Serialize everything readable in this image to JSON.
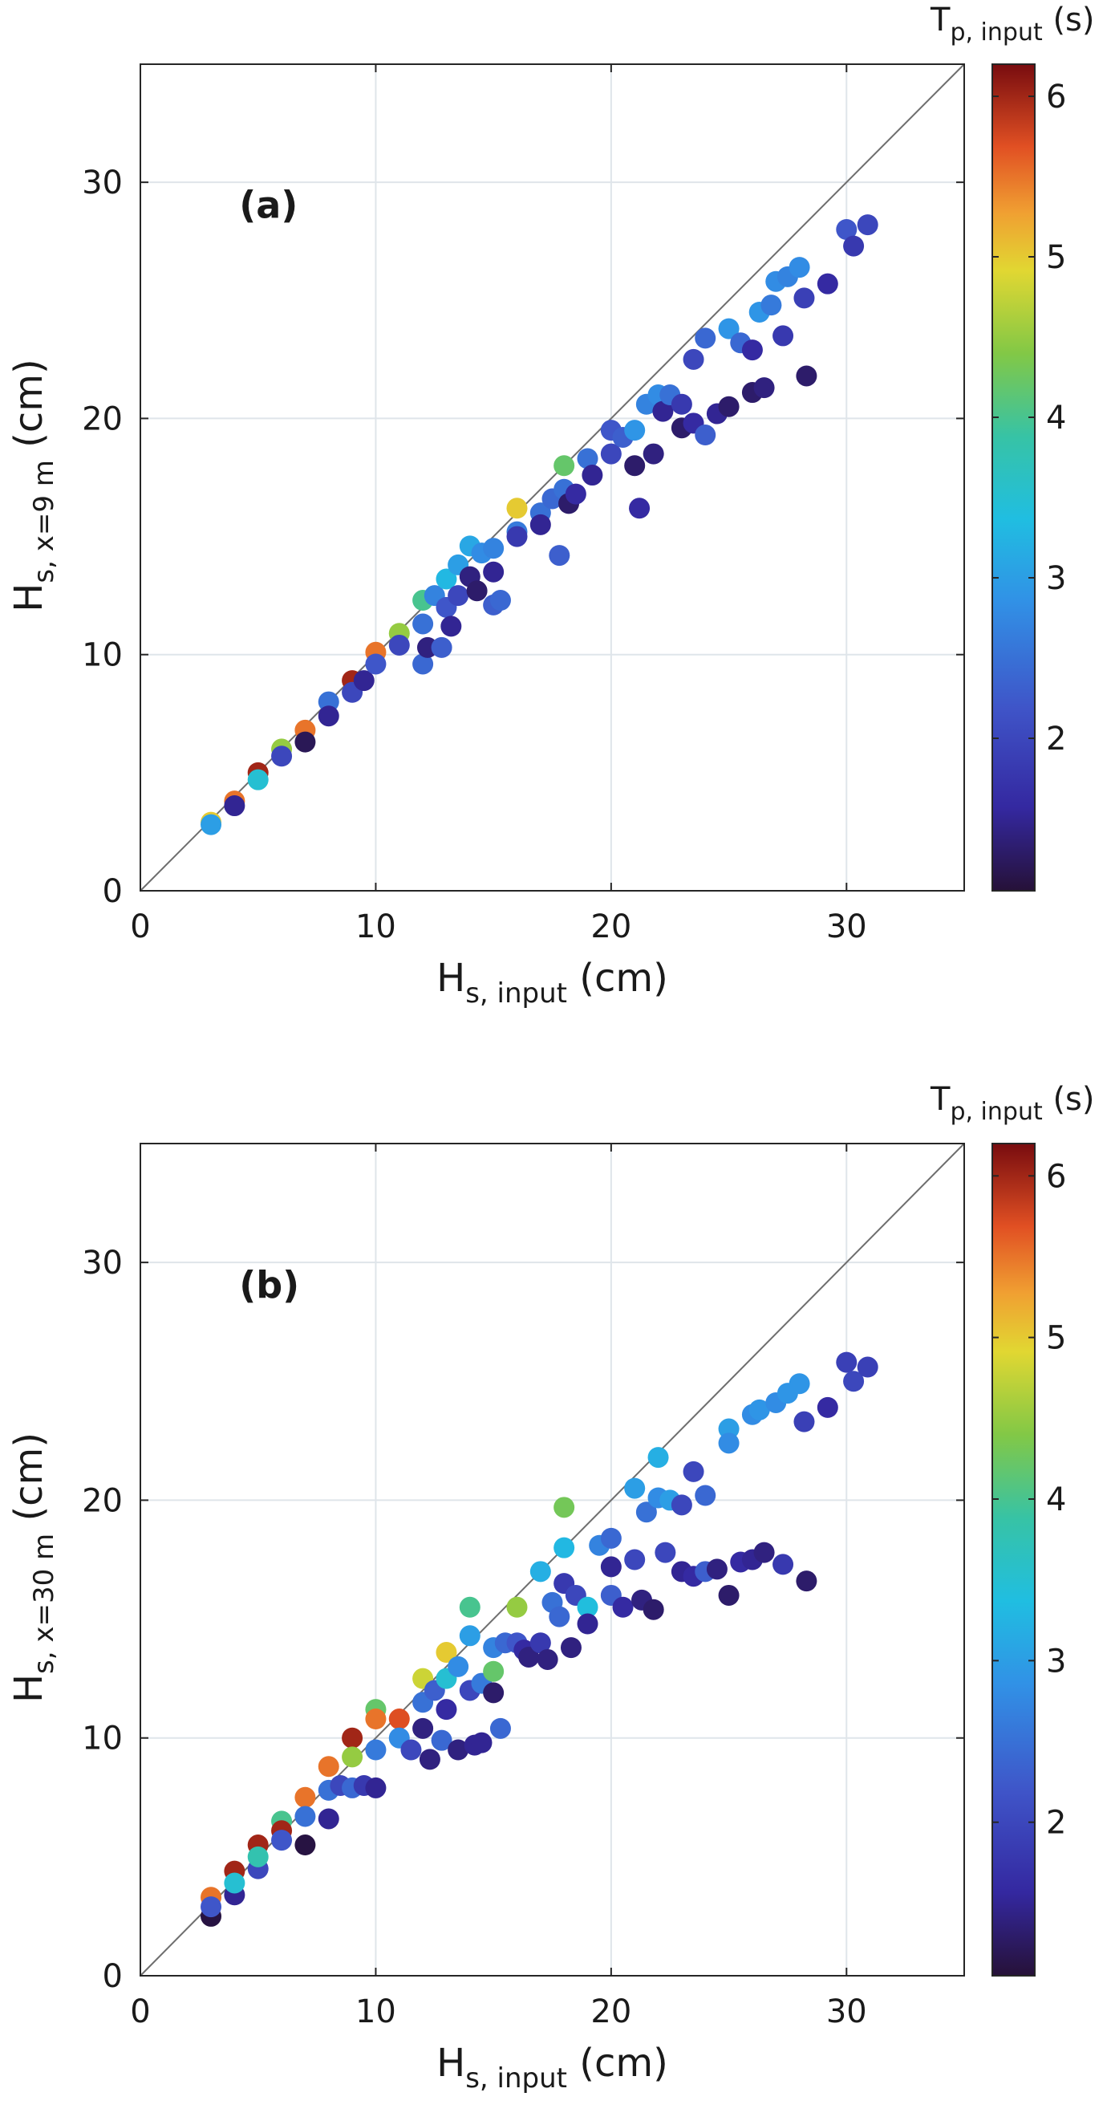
{
  "chart_data": [
    {
      "type": "scatter",
      "panel_label": "(a)",
      "xlabel_main": "H",
      "xlabel_sub": "s, input",
      "xlabel_unit": "(cm)",
      "ylabel_main": "H",
      "ylabel_sub": "s, x=9 m",
      "ylabel_unit": "(cm)",
      "xlim": [
        0,
        35
      ],
      "ylim": [
        0,
        35
      ],
      "xticks": [
        0,
        10,
        20,
        30
      ],
      "yticks": [
        0,
        10,
        20,
        30
      ],
      "grid": true,
      "reference_line": "y = x",
      "colorbar": {
        "label_main": "T",
        "label_sub": "p, input",
        "label_unit": "(s)",
        "range": [
          1.05,
          6.2
        ],
        "ticks": [
          2,
          3,
          4,
          5,
          6
        ]
      },
      "series": [
        {
          "name": "points",
          "points": [
            [
              3.0,
              2.9,
              5.0
            ],
            [
              3.0,
              2.8,
              3.0
            ],
            [
              4.0,
              3.8,
              5.5
            ],
            [
              4.0,
              3.6,
              1.5
            ],
            [
              5.0,
              5.0,
              6.0
            ],
            [
              5.0,
              4.7,
              3.5
            ],
            [
              6.0,
              6.0,
              4.5
            ],
            [
              6.0,
              5.7,
              2.0
            ],
            [
              7.0,
              6.8,
              5.5
            ],
            [
              7.0,
              6.3,
              1.2
            ],
            [
              8.0,
              8.0,
              2.5
            ],
            [
              8.0,
              7.4,
              1.5
            ],
            [
              9.0,
              8.9,
              6.0
            ],
            [
              9.0,
              8.4,
              2.0
            ],
            [
              9.5,
              8.9,
              1.5
            ],
            [
              10.0,
              10.1,
              5.5
            ],
            [
              10.0,
              9.6,
              2.2
            ],
            [
              11.0,
              10.9,
              4.5
            ],
            [
              11.0,
              10.4,
              2.0
            ],
            [
              12.0,
              12.3,
              4.0
            ],
            [
              12.0,
              11.3,
              2.5
            ],
            [
              12.0,
              9.6,
              2.4
            ],
            [
              12.2,
              10.3,
              1.4
            ],
            [
              12.5,
              12.5,
              2.7
            ],
            [
              12.8,
              10.3,
              2.3
            ],
            [
              13.0,
              13.2,
              3.3
            ],
            [
              13.0,
              12.0,
              2.2
            ],
            [
              13.2,
              11.2,
              1.5
            ],
            [
              13.5,
              13.8,
              3.0
            ],
            [
              13.5,
              12.5,
              2.0
            ],
            [
              14.0,
              14.6,
              3.1
            ],
            [
              14.0,
              13.3,
              1.4
            ],
            [
              14.3,
              12.7,
              1.3
            ],
            [
              14.5,
              14.3,
              2.8
            ],
            [
              15.0,
              14.5,
              2.7
            ],
            [
              15.0,
              13.5,
              1.5
            ],
            [
              15.0,
              12.1,
              2.3
            ],
            [
              15.3,
              12.3,
              2.4
            ],
            [
              16.0,
              16.2,
              5.0
            ],
            [
              16.0,
              15.2,
              2.6
            ],
            [
              16.0,
              15.0,
              1.8
            ],
            [
              17.0,
              16.0,
              2.5
            ],
            [
              17.0,
              15.5,
              1.5
            ],
            [
              17.5,
              16.6,
              2.4
            ],
            [
              17.8,
              14.2,
              2.3
            ],
            [
              18.0,
              18.0,
              4.2
            ],
            [
              18.0,
              17.0,
              2.5
            ],
            [
              18.2,
              16.4,
              1.3
            ],
            [
              18.5,
              16.8,
              1.6
            ],
            [
              19.0,
              18.3,
              2.5
            ],
            [
              19.2,
              17.6,
              1.5
            ],
            [
              20.0,
              19.5,
              2.2
            ],
            [
              20.0,
              18.5,
              2.0
            ],
            [
              20.5,
              19.2,
              2.3
            ],
            [
              21.0,
              19.5,
              2.9
            ],
            [
              21.0,
              18.0,
              1.3
            ],
            [
              21.2,
              16.2,
              1.6
            ],
            [
              21.5,
              20.6,
              2.7
            ],
            [
              21.8,
              18.5,
              1.4
            ],
            [
              22.0,
              21.0,
              2.8
            ],
            [
              22.2,
              20.3,
              1.5
            ],
            [
              22.5,
              21.0,
              2.5
            ],
            [
              23.0,
              20.6,
              1.8
            ],
            [
              23.0,
              19.6,
              1.3
            ],
            [
              23.5,
              22.5,
              2.0
            ],
            [
              23.5,
              19.8,
              1.6
            ],
            [
              24.0,
              23.4,
              2.4
            ],
            [
              24.0,
              19.3,
              2.3
            ],
            [
              24.5,
              20.2,
              1.5
            ],
            [
              25.0,
              23.8,
              2.9
            ],
            [
              25.0,
              20.5,
              1.3
            ],
            [
              25.5,
              23.2,
              2.4
            ],
            [
              26.0,
              22.9,
              1.6
            ],
            [
              26.0,
              21.1,
              1.3
            ],
            [
              26.3,
              24.5,
              2.9
            ],
            [
              26.5,
              21.3,
              1.4
            ],
            [
              26.8,
              24.8,
              2.6
            ],
            [
              27.0,
              25.8,
              2.8
            ],
            [
              27.3,
              23.5,
              1.8
            ],
            [
              27.5,
              26.0,
              2.7
            ],
            [
              28.0,
              26.4,
              2.8
            ],
            [
              28.2,
              25.1,
              1.9
            ],
            [
              28.3,
              21.8,
              1.3
            ],
            [
              29.2,
              25.7,
              1.6
            ],
            [
              30.0,
              28.0,
              2.2
            ],
            [
              30.3,
              27.3,
              1.8
            ],
            [
              30.9,
              28.2,
              2.0
            ]
          ]
        }
      ]
    },
    {
      "type": "scatter",
      "panel_label": "(b)",
      "xlabel_main": "H",
      "xlabel_sub": "s, input",
      "xlabel_unit": "(cm)",
      "ylabel_main": "H",
      "ylabel_sub": "s, x=30 m",
      "ylabel_unit": "(cm)",
      "xlim": [
        0,
        35
      ],
      "ylim": [
        0,
        35
      ],
      "xticks": [
        0,
        10,
        20,
        30
      ],
      "yticks": [
        0,
        10,
        20,
        30
      ],
      "grid": true,
      "reference_line": "y = x",
      "colorbar": {
        "label_main": "T",
        "label_sub": "p, input",
        "label_unit": "(s)",
        "range": [
          1.05,
          6.2
        ],
        "ticks": [
          2,
          3,
          4,
          5,
          6
        ]
      },
      "series": [
        {
          "name": "points",
          "points": [
            [
              3.0,
              3.3,
              5.5
            ],
            [
              3.0,
              2.5,
              1.1
            ],
            [
              3.0,
              2.9,
              2.2
            ],
            [
              4.0,
              4.4,
              6.0
            ],
            [
              4.0,
              3.4,
              1.5
            ],
            [
              4.0,
              3.9,
              3.5
            ],
            [
              5.0,
              5.5,
              6.0
            ],
            [
              5.0,
              4.5,
              2.0
            ],
            [
              5.0,
              5.0,
              3.8
            ],
            [
              6.0,
              6.5,
              4.0
            ],
            [
              6.0,
              6.1,
              6.0
            ],
            [
              6.0,
              5.7,
              2.2
            ],
            [
              7.0,
              7.5,
              5.5
            ],
            [
              7.0,
              6.7,
              2.5
            ],
            [
              7.0,
              5.5,
              1.1
            ],
            [
              8.0,
              8.8,
              5.5
            ],
            [
              8.0,
              7.8,
              2.5
            ],
            [
              8.0,
              6.6,
              1.5
            ],
            [
              8.5,
              8.0,
              2.0
            ],
            [
              9.0,
              10.0,
              6.0
            ],
            [
              9.0,
              9.2,
              4.5
            ],
            [
              9.0,
              7.9,
              2.4
            ],
            [
              9.5,
              8.0,
              1.8
            ],
            [
              10.0,
              11.2,
              4.2
            ],
            [
              10.0,
              10.8,
              5.5
            ],
            [
              10.0,
              9.5,
              2.6
            ],
            [
              10.0,
              7.9,
              1.5
            ],
            [
              11.0,
              10.8,
              5.7
            ],
            [
              11.0,
              10.0,
              2.8
            ],
            [
              11.5,
              9.5,
              2.0
            ],
            [
              12.0,
              12.5,
              4.8
            ],
            [
              12.0,
              11.5,
              2.5
            ],
            [
              12.0,
              10.4,
              1.4
            ],
            [
              12.3,
              9.1,
              1.4
            ],
            [
              12.5,
              12.0,
              2.3
            ],
            [
              12.8,
              9.9,
              2.4
            ],
            [
              13.0,
              13.6,
              5.0
            ],
            [
              13.0,
              12.5,
              3.5
            ],
            [
              13.0,
              11.2,
              1.6
            ],
            [
              13.5,
              13.0,
              2.8
            ],
            [
              13.5,
              9.5,
              1.4
            ],
            [
              14.0,
              15.5,
              4.0
            ],
            [
              14.0,
              14.3,
              3.0
            ],
            [
              14.0,
              12.0,
              2.0
            ],
            [
              14.2,
              9.7,
              1.5
            ],
            [
              14.5,
              12.3,
              2.6
            ],
            [
              14.5,
              9.8,
              1.5
            ],
            [
              15.0,
              13.8,
              2.7
            ],
            [
              15.0,
              12.8,
              4.2
            ],
            [
              15.0,
              11.9,
              1.3
            ],
            [
              15.3,
              10.4,
              2.4
            ],
            [
              15.5,
              14.0,
              2.4
            ],
            [
              16.0,
              15.5,
              4.5
            ],
            [
              16.0,
              14.0,
              2.2
            ],
            [
              16.3,
              13.7,
              1.6
            ],
            [
              16.5,
              13.4,
              1.4
            ],
            [
              17.0,
              17.0,
              3.2
            ],
            [
              17.0,
              14.0,
              1.8
            ],
            [
              17.3,
              13.3,
              1.4
            ],
            [
              17.5,
              15.7,
              2.5
            ],
            [
              17.8,
              15.1,
              2.4
            ],
            [
              18.0,
              19.7,
              4.3
            ],
            [
              18.0,
              18.0,
              3.3
            ],
            [
              18.0,
              16.5,
              1.8
            ],
            [
              18.3,
              13.8,
              1.4
            ],
            [
              18.5,
              16.0,
              2.0
            ],
            [
              19.0,
              15.5,
              3.4
            ],
            [
              19.0,
              14.8,
              1.5
            ],
            [
              19.5,
              18.1,
              2.7
            ],
            [
              20.0,
              18.4,
              2.4
            ],
            [
              20.0,
              17.2,
              1.5
            ],
            [
              20.0,
              16.0,
              2.3
            ],
            [
              20.5,
              15.5,
              1.6
            ],
            [
              21.0,
              20.5,
              3.0
            ],
            [
              21.0,
              17.5,
              2.0
            ],
            [
              21.3,
              15.8,
              1.4
            ],
            [
              21.5,
              19.5,
              2.5
            ],
            [
              21.8,
              15.4,
              1.3
            ],
            [
              22.0,
              21.8,
              3.2
            ],
            [
              22.0,
              20.1,
              2.8
            ],
            [
              22.3,
              17.8,
              2.0
            ],
            [
              22.5,
              20.0,
              3.0
            ],
            [
              23.0,
              19.8,
              2.0
            ],
            [
              23.0,
              17.0,
              1.5
            ],
            [
              23.5,
              21.2,
              2.0
            ],
            [
              23.5,
              16.8,
              1.6
            ],
            [
              24.0,
              20.2,
              2.4
            ],
            [
              24.0,
              17.0,
              2.3
            ],
            [
              24.5,
              17.1,
              1.4
            ],
            [
              25.0,
              23.0,
              3.0
            ],
            [
              25.0,
              22.4,
              2.8
            ],
            [
              25.0,
              16.0,
              1.3
            ],
            [
              25.5,
              17.4,
              1.6
            ],
            [
              26.0,
              23.6,
              2.8
            ],
            [
              26.0,
              17.5,
              1.5
            ],
            [
              26.3,
              23.8,
              2.9
            ],
            [
              26.5,
              17.8,
              1.4
            ],
            [
              27.0,
              24.1,
              2.8
            ],
            [
              27.3,
              17.3,
              1.8
            ],
            [
              27.5,
              24.5,
              2.9
            ],
            [
              28.0,
              24.9,
              2.9
            ],
            [
              28.2,
              23.3,
              1.9
            ],
            [
              28.3,
              16.6,
              1.3
            ],
            [
              29.2,
              23.9,
              1.6
            ],
            [
              30.0,
              25.8,
              1.9
            ],
            [
              30.3,
              25.0,
              2.0
            ],
            [
              30.9,
              25.6,
              1.9
            ]
          ]
        }
      ]
    }
  ]
}
